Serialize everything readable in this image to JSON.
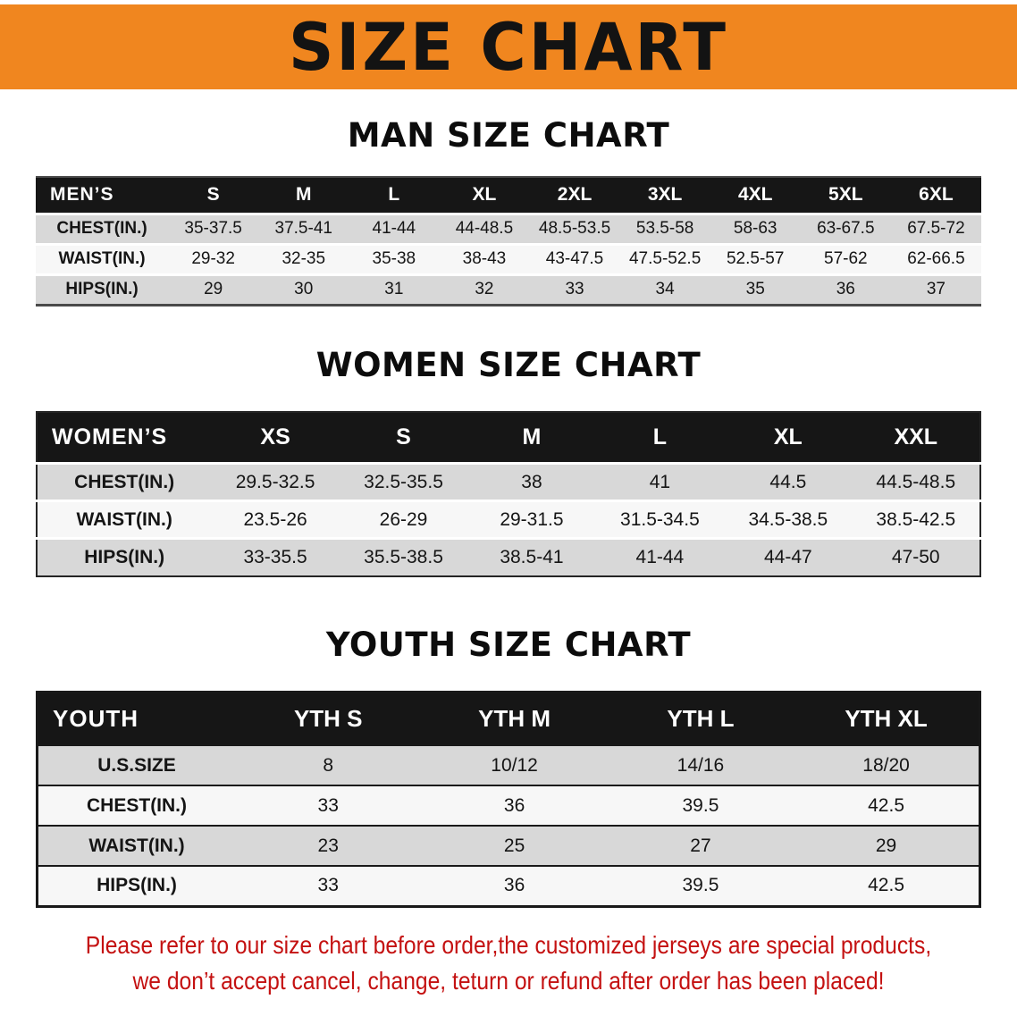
{
  "colors": {
    "banner-bg": "#F0861F",
    "banner-text": "#131313",
    "table-head-bg": "#161616",
    "table-head-text": "#FFFFFF",
    "row-shaded": "#D8D8D8",
    "row-plain": "#F7F7F7",
    "cell-text": "#151515",
    "notice-color": "#C41111"
  },
  "banner": {
    "title": "SIZE CHART"
  },
  "sections": [
    {
      "heading": "MAN SIZE CHART",
      "table": {
        "header_label": "MEN’S",
        "columns": [
          "S",
          "M",
          "L",
          "XL",
          "2XL",
          "3XL",
          "4XL",
          "5XL",
          "6XL"
        ],
        "rows": [
          {
            "label": "CHEST(IN.)",
            "values": [
              "35-37.5",
              "37.5-41",
              "41-44",
              "44-48.5",
              "48.5-53.5",
              "53.5-58",
              "58-63",
              "63-67.5",
              "67.5-72"
            ]
          },
          {
            "label": "WAIST(IN.)",
            "values": [
              "29-32",
              "32-35",
              "35-38",
              "38-43",
              "43-47.5",
              "47.5-52.5",
              "52.5-57",
              "57-62",
              "62-66.5"
            ]
          },
          {
            "label": "HIPS(IN.)",
            "values": [
              "29",
              "30",
              "31",
              "32",
              "33",
              "34",
              "35",
              "36",
              "37"
            ]
          }
        ]
      }
    },
    {
      "heading": "WOMEN SIZE CHART",
      "table": {
        "header_label": "WOMEN’S",
        "columns": [
          "XS",
          "S",
          "M",
          "L",
          "XL",
          "XXL"
        ],
        "rows": [
          {
            "label": "CHEST(IN.)",
            "values": [
              "29.5-32.5",
              "32.5-35.5",
              "38",
              "41",
              "44.5",
              "44.5-48.5"
            ]
          },
          {
            "label": "WAIST(IN.)",
            "values": [
              "23.5-26",
              "26-29",
              "29-31.5",
              "31.5-34.5",
              "34.5-38.5",
              "38.5-42.5"
            ]
          },
          {
            "label": "HIPS(IN.)",
            "values": [
              "33-35.5",
              "35.5-38.5",
              "38.5-41",
              "41-44",
              "44-47",
              "47-50"
            ]
          }
        ]
      }
    },
    {
      "heading": "YOUTH SIZE CHART",
      "table": {
        "header_label": "YOUTH",
        "columns": [
          "YTH S",
          "YTH M",
          "YTH L",
          "YTH XL"
        ],
        "rows": [
          {
            "label": "U.S.SIZE",
            "values": [
              "8",
              "10/12",
              "14/16",
              "18/20"
            ]
          },
          {
            "label": "CHEST(IN.)",
            "values": [
              "33",
              "36",
              "39.5",
              "42.5"
            ]
          },
          {
            "label": "WAIST(IN.)",
            "values": [
              "23",
              "25",
              "27",
              "29"
            ]
          },
          {
            "label": "HIPS(IN.)",
            "values": [
              "33",
              "36",
              "39.5",
              "42.5"
            ]
          }
        ]
      }
    }
  ],
  "footer": {
    "line1": "Please refer to our size chart before order,the customized jerseys are special products,",
    "line2": "we don’t accept cancel, change, teturn or refund after order has been placed!"
  }
}
